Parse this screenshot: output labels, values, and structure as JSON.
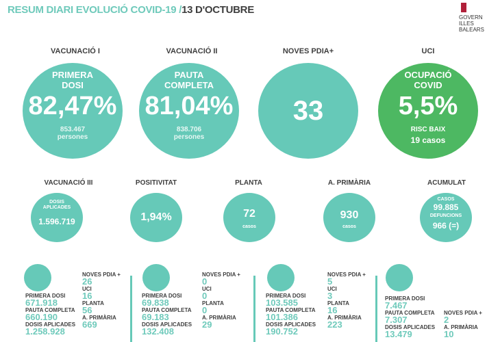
{
  "header": {
    "title": "RESUM DIARI EVOLUCIÓ COVID-19 /",
    "date": "13 D'OCTUBRE",
    "logo": [
      "GOVERN",
      "ILLES",
      "BALEARS"
    ]
  },
  "top": [
    {
      "label": "VACUNACIÓ I",
      "sub1": "PRIMERA",
      "sub2": "DOSI",
      "value": "82,47%",
      "count": "853.467",
      "unit": "persones"
    },
    {
      "label": "VACUNACIÓ II",
      "sub1": "PAUTA",
      "sub2": "COMPLETA",
      "value": "81,04%",
      "count": "838.706",
      "unit": "persones"
    },
    {
      "label": "NOVES PDIA+",
      "value": "33"
    },
    {
      "label": "UCI",
      "sub1": "OCUPACIÓ",
      "sub2": "COVID",
      "value": "5,5%",
      "risk": "RISC BAIX",
      "cases": "19 casos",
      "color": "#4db862"
    }
  ],
  "middle": [
    {
      "label": "VACUNACIÓ III",
      "sub1": "DOSIS",
      "sub2": "APLICADES",
      "value": "1.596.719"
    },
    {
      "label": "POSITIVITAT",
      "value": "1,94%"
    },
    {
      "label": "PLANTA",
      "value": "72",
      "unit": "casos"
    },
    {
      "label": "A. PRIMÀRIA",
      "value": "930",
      "unit": "casos"
    },
    {
      "label": "ACUMULAT",
      "casos_label": "CASOS",
      "casos": "99.885",
      "def_label": "DEFUNCIONS",
      "def": "966 (=)"
    }
  ],
  "islands": {
    "labels": {
      "primera": "PRIMERA DOSI",
      "pauta": "PAUTA COMPLETA",
      "dosis": "DOSIS APLICADES",
      "pdia": "NOVES PDIA +",
      "uci": "UCI",
      "planta": "PLANTA",
      "ap": "A. PRIMÀRIA"
    },
    "items": [
      {
        "icon": "mallorca-map-icon",
        "primera": "671.918",
        "pauta": "660.190",
        "dosis": "1.258.928",
        "pdia": "26",
        "uci": "16",
        "planta": "56",
        "ap": "669"
      },
      {
        "icon": "menorca-map-icon",
        "primera": "69.838",
        "pauta": "69.183",
        "dosis": "132.408",
        "pdia": "0",
        "uci": "0",
        "planta": "0",
        "ap": "29"
      },
      {
        "icon": "eivissa-map-icon",
        "primera": "103.585",
        "pauta": "101.386",
        "dosis": "190.752",
        "pdia": "5",
        "uci": "3",
        "planta": "16",
        "ap": "223"
      },
      {
        "icon": "formentera-map-icon",
        "primera": "7.467",
        "pauta": "7.307",
        "dosis": "13.479",
        "pdia": "2",
        "ap": "10"
      }
    ]
  },
  "colors": {
    "teal": "#66c9b8",
    "green": "#4db862",
    "text": "#3e3e3e"
  }
}
